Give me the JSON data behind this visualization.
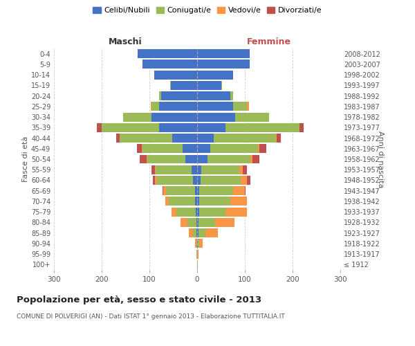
{
  "age_groups": [
    "100+",
    "95-99",
    "90-94",
    "85-89",
    "80-84",
    "75-79",
    "70-74",
    "65-69",
    "60-64",
    "55-59",
    "50-54",
    "45-49",
    "40-44",
    "35-39",
    "30-34",
    "25-29",
    "20-24",
    "15-19",
    "10-14",
    "5-9",
    "0-4"
  ],
  "birth_years": [
    "≤ 1912",
    "1913-1917",
    "1918-1922",
    "1923-1927",
    "1928-1932",
    "1933-1937",
    "1938-1942",
    "1943-1947",
    "1948-1952",
    "1953-1957",
    "1958-1962",
    "1963-1967",
    "1968-1972",
    "1973-1977",
    "1978-1982",
    "1983-1987",
    "1988-1992",
    "1993-1997",
    "1998-2002",
    "2003-2007",
    "2008-2012"
  ],
  "male_celibi": [
    0,
    0,
    0,
    1,
    2,
    3,
    4,
    5,
    9,
    12,
    25,
    30,
    52,
    80,
    95,
    80,
    75,
    55,
    90,
    115,
    125
  ],
  "male_coniugati": [
    0,
    0,
    2,
    8,
    18,
    40,
    55,
    60,
    75,
    75,
    80,
    85,
    110,
    120,
    60,
    15,
    5,
    2,
    0,
    0,
    0
  ],
  "male_vedovi": [
    0,
    1,
    2,
    8,
    15,
    10,
    8,
    6,
    4,
    2,
    1,
    1,
    0,
    0,
    0,
    2,
    0,
    0,
    0,
    0,
    0
  ],
  "male_divorziati": [
    0,
    0,
    0,
    0,
    0,
    0,
    0,
    1,
    5,
    7,
    15,
    10,
    8,
    10,
    0,
    0,
    0,
    0,
    0,
    0,
    0
  ],
  "female_celibi": [
    0,
    0,
    2,
    3,
    3,
    5,
    5,
    5,
    7,
    9,
    22,
    28,
    35,
    60,
    80,
    75,
    70,
    50,
    75,
    110,
    110
  ],
  "female_coniugati": [
    0,
    1,
    2,
    15,
    35,
    55,
    65,
    70,
    85,
    80,
    90,
    100,
    130,
    155,
    70,
    30,
    5,
    2,
    0,
    0,
    0
  ],
  "female_vedovi": [
    1,
    2,
    8,
    25,
    40,
    45,
    35,
    25,
    12,
    6,
    4,
    2,
    1,
    0,
    0,
    3,
    0,
    0,
    0,
    0,
    0
  ],
  "female_divorziati": [
    0,
    0,
    0,
    0,
    0,
    0,
    0,
    1,
    8,
    10,
    15,
    15,
    10,
    8,
    0,
    0,
    0,
    0,
    0,
    0,
    0
  ],
  "color_celibi": "#4472c4",
  "color_coniugati": "#9bbb59",
  "color_vedovi": "#f79646",
  "color_divorziati": "#c0504d",
  "xlim": 300,
  "title": "Popolazione per età, sesso e stato civile - 2013",
  "subtitle": "COMUNE DI POLVERIGI (AN) - Dati ISTAT 1° gennaio 2013 - Elaborazione TUTTITALIA.IT",
  "ylabel_left": "Fasce di età",
  "ylabel_right": "Anni di nascita",
  "xlabel_left": "Maschi",
  "xlabel_right": "Femmine",
  "legend_labels": [
    "Celibi/Nubili",
    "Coniugati/e",
    "Vedovi/e",
    "Divorziati/e"
  ],
  "background_color": "#ffffff",
  "grid_color": "#cccccc"
}
